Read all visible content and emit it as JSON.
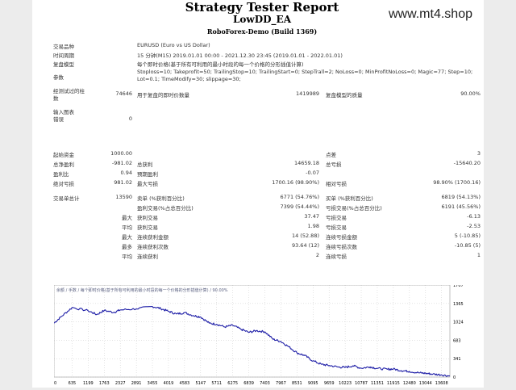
{
  "report": {
    "title": "Strategy Tester Report",
    "ea_name": "LowDD_EA",
    "server": "RoboForex-Demo (Build 1369)",
    "brand": "www.mt4.shop"
  },
  "info_rows": [
    {
      "label": "交易品种",
      "value": "EURUSD (Euro vs US Dollar)"
    },
    {
      "label": "时间周期",
      "value": "15 分钟(M15) 2019.01.01 00:00 - 2021.12.30 23:45 (2019.01.01 - 2022.01.01)"
    },
    {
      "label": "复盘模型",
      "value": "每个即时价格(基于所有可利用的最小时段的每一个价格的分形插值计算)"
    },
    {
      "label": "参数",
      "value": "Stoploss=10; Takeprofit=50; TrailingStop=10; TrailingStart=0; StepTrall=2; NoLoss=0; MinProfitNoLoss=0; Magic=77; Step=10;",
      "value2": "Lot=0.1; TimeModify=30; slippage=30;"
    }
  ],
  "bars_tested": {
    "label": "经测试过的柱数",
    "value": "74646",
    "label2": "用于复盘的即时价数量",
    "value2": "1419989",
    "label3": "复盘模型的质量",
    "value3": "90.00%"
  },
  "mismatch": {
    "label": "输入图表错误",
    "value": "0"
  },
  "stats": {
    "initial_deposit": {
      "label": "起始资金",
      "value": "1000.00"
    },
    "spread": {
      "label": "点差",
      "value": "3"
    },
    "total_net_profit": {
      "label": "总净盈利",
      "value": "-981.02"
    },
    "gross_profit": {
      "label": "总获利",
      "value": "14659.18"
    },
    "gross_loss": {
      "label": "总亏损",
      "value": "-15640.20"
    },
    "profit_factor": {
      "label": "盈利比",
      "value": "0.94"
    },
    "expected_payoff": {
      "label": "预期盈利",
      "value": "-0.07"
    },
    "absolute_drawdown": {
      "label": "绝对亏损",
      "value": "981.02"
    },
    "maximal_drawdown": {
      "label": "最大亏损",
      "value": "1700.16 (98.90%)"
    },
    "relative_drawdown": {
      "label": "相对亏损",
      "value": "98.90% (1700.16)"
    },
    "total_trades": {
      "label": "交易单总计",
      "value": "13590"
    },
    "short_positions": {
      "label": "卖单 (%获利百分比)",
      "value": "6771 (54.76%)"
    },
    "long_positions": {
      "label": "买单 (%获利百分比)",
      "value": "6819 (54.13%)"
    },
    "profit_trades": {
      "label": "盈利交易(%占总百分比)",
      "value": "7399 (54.44%)"
    },
    "loss_trades": {
      "label": "亏损交易(%占总百分比)",
      "value": "6191 (45.56%)"
    },
    "largest_label": "最大",
    "largest_profit": {
      "label": "获利交易",
      "value": "37.47"
    },
    "largest_loss": {
      "label": "亏损交易",
      "value": "-6.13"
    },
    "average_label": "平均",
    "average_profit": {
      "label": "获利交易",
      "value": "1.98"
    },
    "average_loss": {
      "label": "亏损交易",
      "value": "-2.53"
    },
    "maximum_label": "最大",
    "max_consec_wins": {
      "label": "连续获利金额",
      "value": "14 (52.88)"
    },
    "max_consec_losses": {
      "label": "连续亏损金额",
      "value": "5 (-10.85)"
    },
    "maximal_label": "最多",
    "max_consec_profit": {
      "label": "连续获利次数",
      "value": "93.64 (12)"
    },
    "max_consec_loss": {
      "label": "连续亏损次数",
      "value": "-10.85 (5)"
    },
    "average_label2": "平均",
    "avg_consec_wins": {
      "label": "连续获利",
      "value": "2"
    },
    "avg_consec_losses": {
      "label": "连续亏损",
      "value": "1"
    }
  },
  "chart_data": {
    "type": "line",
    "legend": "余额 / 手数 / 每个即时价格(基于所有可利用的最小时段的每一个价格的分形插值计算) / 90.00%",
    "line_color": "#1c1ca6",
    "ylim": [
      0,
      1707
    ],
    "yticks": [
      "1707",
      "1365",
      "1024",
      "683",
      "341",
      "0"
    ],
    "xticks": [
      "0",
      "635",
      "1199",
      "1763",
      "2327",
      "2891",
      "3455",
      "4019",
      "4583",
      "5147",
      "5711",
      "6275",
      "6839",
      "7403",
      "7967",
      "8531",
      "9095",
      "9659",
      "10223",
      "10787",
      "11351",
      "11915",
      "12480",
      "13044",
      "13608"
    ],
    "x_max": 13900,
    "anchors": [
      [
        0,
        1000
      ],
      [
        250,
        1120
      ],
      [
        635,
        1290
      ],
      [
        1199,
        1230
      ],
      [
        1500,
        1160
      ],
      [
        1763,
        1235
      ],
      [
        2100,
        1200
      ],
      [
        2327,
        1245
      ],
      [
        2891,
        1265
      ],
      [
        3455,
        1310
      ],
      [
        3750,
        1270
      ],
      [
        4019,
        1220
      ],
      [
        4300,
        1170
      ],
      [
        4583,
        1195
      ],
      [
        4900,
        1140
      ],
      [
        5147,
        1115
      ],
      [
        5450,
        1000
      ],
      [
        5711,
        980
      ],
      [
        6000,
        930
      ],
      [
        6275,
        960
      ],
      [
        6550,
        890
      ],
      [
        6839,
        830
      ],
      [
        7100,
        860
      ],
      [
        7403,
        840
      ],
      [
        7700,
        700
      ],
      [
        7967,
        660
      ],
      [
        8250,
        560
      ],
      [
        8531,
        450
      ],
      [
        8800,
        400
      ],
      [
        9095,
        300
      ],
      [
        9400,
        235
      ],
      [
        9659,
        215
      ],
      [
        10000,
        185
      ],
      [
        10223,
        180
      ],
      [
        10500,
        210
      ],
      [
        10787,
        165
      ],
      [
        11100,
        190
      ],
      [
        11351,
        160
      ],
      [
        11700,
        145
      ],
      [
        11915,
        150
      ],
      [
        12200,
        120
      ],
      [
        12480,
        105
      ],
      [
        12800,
        80
      ],
      [
        13044,
        70
      ],
      [
        13300,
        55
      ],
      [
        13608,
        42
      ],
      [
        13900,
        19
      ]
    ]
  }
}
